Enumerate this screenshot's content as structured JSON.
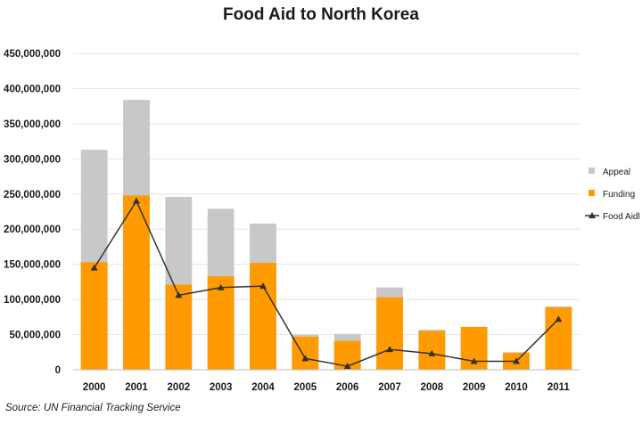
{
  "chart_data": {
    "type": "bar",
    "title": "Food Aid to North Korea",
    "xlabel": "",
    "ylabel": "",
    "ylim": [
      0,
      450000000
    ],
    "ytick_values": [
      0,
      50000000,
      100000000,
      150000000,
      200000000,
      250000000,
      300000000,
      350000000,
      400000000,
      450000000
    ],
    "ytick_labels": [
      "0",
      "50,000,000",
      "100,000,000",
      "150,000,000",
      "200,000,000",
      "250,000,000",
      "300,000,000",
      "350,000,000",
      "400,000,000",
      "450,000,000"
    ],
    "categories": [
      "2000",
      "2001",
      "2002",
      "2003",
      "2004",
      "2005",
      "2006",
      "2007",
      "2008",
      "2009",
      "2010",
      "2011"
    ],
    "series": [
      {
        "name": "Appeal",
        "kind": "bar",
        "color": "#c8c8c8",
        "values": [
          313000000,
          384000000,
          246000000,
          229000000,
          208000000,
          50000000,
          51000000,
          117000000,
          57000000,
          61000000,
          25000000,
          90000000
        ]
      },
      {
        "name": "Funding",
        "kind": "bar",
        "color": "#ff9a00",
        "values": [
          153000000,
          248000000,
          121000000,
          133000000,
          152000000,
          47000000,
          41000000,
          103000000,
          55000000,
          61000000,
          24000000,
          89000000
        ]
      },
      {
        "name": "Food Aid",
        "kind": "line",
        "marker": "triangle",
        "color": "#333333",
        "values": [
          145000000,
          240000000,
          106000000,
          117000000,
          119000000,
          16000000,
          5000000,
          29000000,
          23000000,
          12000000,
          12000000,
          72000000
        ]
      }
    ],
    "legend_labels": [
      "Appeal",
      "Funding",
      "Food Aidl"
    ],
    "legend_position": "right",
    "grid": true
  },
  "source_text": "Source: UN Financial Tracking Service"
}
